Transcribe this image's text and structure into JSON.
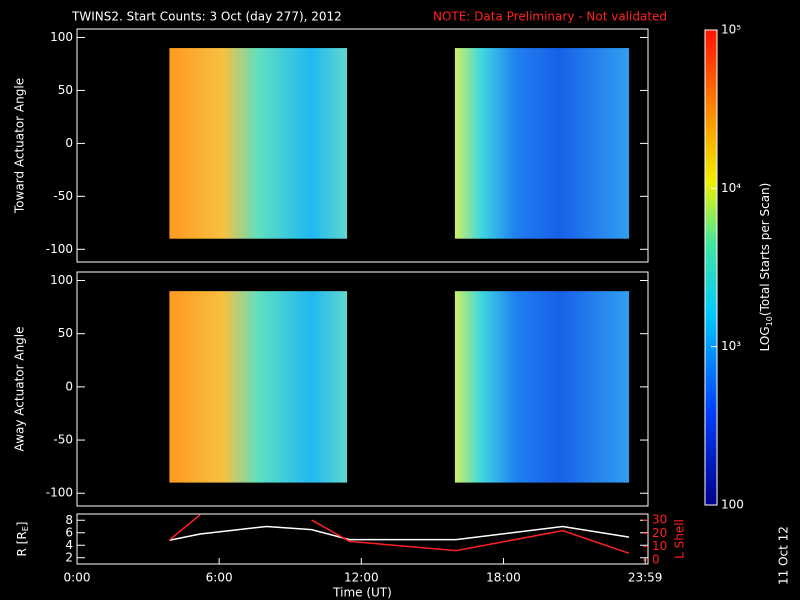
{
  "title": "TWINS2. Start Counts:  3 Oct (day 277), 2012",
  "note": "NOTE: Data Preliminary - Not validated",
  "stamp": "11 Oct 12",
  "colorbar": {
    "label": "LOG",
    "label_sub": "10",
    "label_end": "(Total Starts per Scan)",
    "log": true,
    "lim": [
      100,
      100000
    ],
    "ticks": [
      {
        "value": 100,
        "label": "100"
      },
      {
        "value": 1000,
        "label": "10³"
      },
      {
        "value": 10000,
        "label": "10⁴"
      },
      {
        "value": 100000,
        "label": "10⁵"
      }
    ]
  },
  "chart_data": [
    {
      "type": "heatmap",
      "ylabel": "Toward Actuator Angle",
      "xlim": [
        0,
        24.1
      ],
      "ylim": [
        -112,
        108
      ],
      "yticks": [
        -100,
        -50,
        0,
        50,
        100
      ],
      "segments": [
        [
          3.9,
          11.4
        ],
        [
          15.95,
          23.3
        ]
      ],
      "bands": [
        -90,
        90
      ]
    },
    {
      "type": "heatmap",
      "ylabel": "Away Actuator Angle",
      "xlim": [
        0,
        24.1
      ],
      "ylim": [
        -112,
        108
      ],
      "yticks": [
        -100,
        -50,
        0,
        50,
        100
      ],
      "segments": [
        [
          3.9,
          11.4
        ],
        [
          15.95,
          23.3
        ]
      ],
      "bands": [
        -90,
        90
      ]
    },
    {
      "type": "line",
      "ylabel": "R [R",
      "ylabel_sub": "E",
      "ylabel_end": "]",
      "y2label": "L Shell",
      "xlabel": "Time (UT)",
      "xlim": [
        0,
        24.1
      ],
      "ylim": [
        1,
        9
      ],
      "yticks": [
        2,
        4,
        6,
        8
      ],
      "y2lim": [
        -3,
        34.5
      ],
      "y2ticks": [
        0,
        10,
        20,
        30
      ],
      "xticks": [
        {
          "value": 0,
          "label": "0:00"
        },
        {
          "value": 6,
          "label": "6:00"
        },
        {
          "value": 12,
          "label": "12:00"
        },
        {
          "value": 18,
          "label": "18:00"
        },
        {
          "value": 23.98,
          "label": "23:59"
        }
      ],
      "x": [
        3.9,
        5.2,
        8,
        9.9,
        11.5,
        16,
        20.5,
        23.3
      ],
      "series": [
        {
          "color": "#ffffff",
          "values": [
            4.8,
            5.8,
            7,
            6.5,
            4.9,
            4.9,
            7,
            5.3
          ]
        },
        {
          "color": "#ff2020",
          "axis": "y2",
          "values": [
            15,
            34,
            null,
            30,
            14,
            7,
            22,
            5
          ]
        }
      ]
    }
  ]
}
